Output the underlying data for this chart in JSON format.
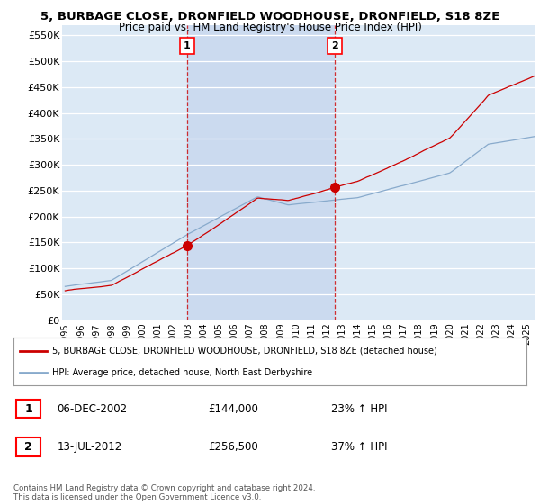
{
  "title": "5, BURBAGE CLOSE, DRONFIELD WOODHOUSE, DRONFIELD, S18 8ZE",
  "subtitle": "Price paid vs. HM Land Registry's House Price Index (HPI)",
  "ylim": [
    0,
    570000
  ],
  "yticks": [
    0,
    50000,
    100000,
    150000,
    200000,
    250000,
    300000,
    350000,
    400000,
    450000,
    500000,
    550000
  ],
  "ytick_labels": [
    "£0",
    "£50K",
    "£100K",
    "£150K",
    "£200K",
    "£250K",
    "£300K",
    "£350K",
    "£400K",
    "£450K",
    "£500K",
    "£550K"
  ],
  "background_color": "#dce9f5",
  "grid_color": "#ffffff",
  "red_line_color": "#cc0000",
  "blue_line_color": "#88aacc",
  "vline_color": "#cc0000",
  "shade_color": "#c8d8ee",
  "sale1_x": 2002.92,
  "sale1_y": 144000,
  "sale2_x": 2012.53,
  "sale2_y": 256500,
  "legend_red_label": "5, BURBAGE CLOSE, DRONFIELD WOODHOUSE, DRONFIELD, S18 8ZE (detached house)",
  "legend_blue_label": "HPI: Average price, detached house, North East Derbyshire",
  "note1_num": "1",
  "note1_date": "06-DEC-2002",
  "note1_price": "£144,000",
  "note1_hpi": "23% ↑ HPI",
  "note2_num": "2",
  "note2_date": "13-JUL-2012",
  "note2_price": "£256,500",
  "note2_hpi": "37% ↑ HPI",
  "footer": "Contains HM Land Registry data © Crown copyright and database right 2024.\nThis data is licensed under the Open Government Licence v3.0.",
  "xmin": 1994.8,
  "xmax": 2025.5
}
